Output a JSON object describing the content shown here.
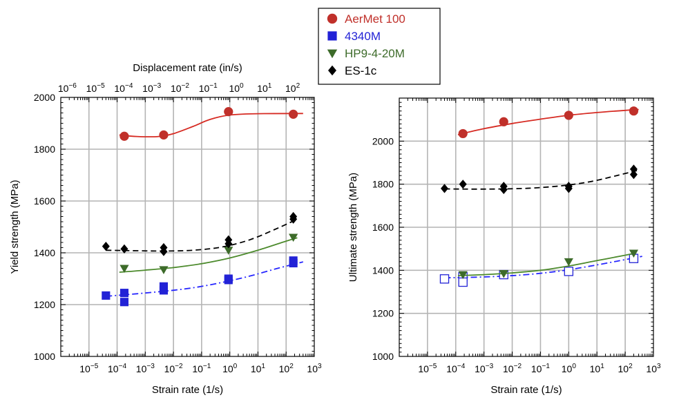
{
  "legend": [
    {
      "name": "AerMet 100",
      "color": "#c0302a",
      "marker": "circle"
    },
    {
      "name": "4340M",
      "color": "#2222d6",
      "marker": "square"
    },
    {
      "name": "HP9-4-20M",
      "color": "#3d6b2a",
      "marker": "triangle-down"
    },
    {
      "name": "ES-1c",
      "color": "#000000",
      "marker": "diamond"
    }
  ],
  "chart_data": [
    {
      "type": "scatter",
      "ylabel": "Yield strength (MPa)",
      "xlabel": "Strain rate (1/s)",
      "x2label": "Displacement rate (in/s)",
      "x_scale": "log",
      "xlim": [
        1e-06,
        1000
      ],
      "ylim": [
        1000,
        2000
      ],
      "y_ticks": [
        "1000",
        "1200",
        "1400",
        "1600",
        "1800",
        "2000"
      ],
      "x_ticks": [
        {
          "base": "10",
          "exp": "−5"
        },
        {
          "base": "10",
          "exp": "−4"
        },
        {
          "base": "10",
          "exp": "−3"
        },
        {
          "base": "10",
          "exp": "−2"
        },
        {
          "base": "10",
          "exp": "−1"
        },
        {
          "base": "10",
          "exp": "0"
        },
        {
          "base": "10",
          "exp": "1"
        },
        {
          "base": "10",
          "exp": "2"
        },
        {
          "base": "10",
          "exp": "3"
        }
      ],
      "x2_ticks": [
        {
          "base": "10",
          "exp": "−6"
        },
        {
          "base": "10",
          "exp": "−5"
        },
        {
          "base": "10",
          "exp": "−4"
        },
        {
          "base": "10",
          "exp": "−3"
        },
        {
          "base": "10",
          "exp": "−2"
        },
        {
          "base": "10",
          "exp": "−1"
        },
        {
          "base": "10",
          "exp": "0"
        },
        {
          "base": "10",
          "exp": "1"
        },
        {
          "base": "10",
          "exp": "2"
        }
      ],
      "grid": true,
      "series": [
        {
          "name": "AerMet 100",
          "points": [
            [
              0.00018,
              1850
            ],
            [
              0.0045,
              1855
            ],
            [
              0.9,
              1945
            ],
            [
              180,
              1935
            ]
          ],
          "fit": [
            [
              0.00012,
              1855
            ],
            [
              0.0005,
              1849
            ],
            [
              0.003,
              1849
            ],
            [
              0.01,
              1860
            ],
            [
              0.05,
              1888
            ],
            [
              0.2,
              1915
            ],
            [
              1,
              1932
            ],
            [
              10,
              1937
            ],
            [
              400,
              1938
            ]
          ]
        },
        {
          "name": "4340M",
          "points": [
            [
              4e-05,
              1235
            ],
            [
              0.00018,
              1245
            ],
            [
              0.00018,
              1210
            ],
            [
              0.0045,
              1270
            ],
            [
              0.0045,
              1255
            ],
            [
              0.9,
              1300
            ],
            [
              0.9,
              1295
            ],
            [
              180,
              1370
            ],
            [
              180,
              1360
            ]
          ],
          "fit": [
            [
              4e-05,
              1232
            ],
            [
              0.0005,
              1242
            ],
            [
              0.005,
              1252
            ],
            [
              0.05,
              1265
            ],
            [
              0.5,
              1285
            ],
            [
              5,
              1310
            ],
            [
              50,
              1340
            ],
            [
              400,
              1365
            ]
          ]
        },
        {
          "name": "HP9-4-20M",
          "points": [
            [
              0.00018,
              1340
            ],
            [
              0.0045,
              1335
            ],
            [
              0.9,
              1410
            ],
            [
              180,
              1460
            ]
          ],
          "fit": [
            [
              0.00012,
              1325
            ],
            [
              0.001,
              1333
            ],
            [
              0.01,
              1343
            ],
            [
              0.1,
              1358
            ],
            [
              1,
              1380
            ],
            [
              10,
              1410
            ],
            [
              100,
              1445
            ],
            [
              250,
              1458
            ]
          ]
        },
        {
          "name": "ES-1c",
          "points": [
            [
              4e-05,
              1425
            ],
            [
              0.00018,
              1415
            ],
            [
              0.0045,
              1420
            ],
            [
              0.0045,
              1405
            ],
            [
              0.9,
              1450
            ],
            [
              0.9,
              1435
            ],
            [
              180,
              1540
            ],
            [
              180,
              1530
            ]
          ],
          "fit": [
            [
              4e-05,
              1410
            ],
            [
              0.0005,
              1408
            ],
            [
              0.005,
              1407
            ],
            [
              0.05,
              1410
            ],
            [
              0.5,
              1422
            ],
            [
              5,
              1450
            ],
            [
              50,
              1495
            ],
            [
              250,
              1530
            ]
          ]
        }
      ]
    },
    {
      "type": "scatter",
      "ylabel": "Ultimate strength (MPa)",
      "xlabel": "Strain rate (1/s)",
      "x_scale": "log",
      "xlim": [
        1e-06,
        1000
      ],
      "ylim": [
        1000,
        2200
      ],
      "y_ticks": [
        "1000",
        "1200",
        "1400",
        "1600",
        "1800",
        "2000"
      ],
      "x_ticks": [
        {
          "base": "10",
          "exp": "−5"
        },
        {
          "base": "10",
          "exp": "−4"
        },
        {
          "base": "10",
          "exp": "−3"
        },
        {
          "base": "10",
          "exp": "−2"
        },
        {
          "base": "10",
          "exp": "−1"
        },
        {
          "base": "10",
          "exp": "0"
        },
        {
          "base": "10",
          "exp": "1"
        },
        {
          "base": "10",
          "exp": "2"
        },
        {
          "base": "10",
          "exp": "3"
        }
      ],
      "grid": true,
      "series": [
        {
          "name": "AerMet 100",
          "points": [
            [
              0.00018,
              2035
            ],
            [
              0.005,
              2090
            ],
            [
              1,
              2120
            ],
            [
              200,
              2140
            ]
          ],
          "fit": [
            [
              0.00012,
              2030
            ],
            [
              0.001,
              2058
            ],
            [
              0.01,
              2082
            ],
            [
              0.1,
              2102
            ],
            [
              1,
              2120
            ],
            [
              10,
              2133
            ],
            [
              100,
              2143
            ],
            [
              300,
              2147
            ]
          ]
        },
        {
          "name": "4340M",
          "points": [
            [
              4e-05,
              1360
            ],
            [
              0.00018,
              1370
            ],
            [
              0.00018,
              1345
            ],
            [
              0.005,
              1380
            ],
            [
              1,
              1395
            ],
            [
              200,
              1455
            ]
          ],
          "fit": [
            [
              4e-05,
              1365
            ],
            [
              0.0005,
              1368
            ],
            [
              0.005,
              1373
            ],
            [
              0.05,
              1382
            ],
            [
              0.5,
              1397
            ],
            [
              5,
              1418
            ],
            [
              50,
              1442
            ],
            [
              400,
              1465
            ]
          ]
        },
        {
          "name": "HP9-4-20M",
          "points": [
            [
              0.00018,
              1380
            ],
            [
              0.005,
              1385
            ],
            [
              1,
              1440
            ],
            [
              200,
              1480
            ]
          ],
          "fit": [
            [
              0.00012,
              1375
            ],
            [
              0.001,
              1380
            ],
            [
              0.01,
              1388
            ],
            [
              0.1,
              1400
            ],
            [
              1,
              1420
            ],
            [
              10,
              1445
            ],
            [
              100,
              1470
            ],
            [
              250,
              1482
            ]
          ]
        },
        {
          "name": "ES-1c",
          "points": [
            [
              4e-05,
              1780
            ],
            [
              0.00018,
              1800
            ],
            [
              0.005,
              1790
            ],
            [
              0.005,
              1775
            ],
            [
              1,
              1790
            ],
            [
              1,
              1780
            ],
            [
              200,
              1870
            ],
            [
              200,
              1845
            ]
          ],
          "fit": [
            [
              4e-05,
              1778
            ],
            [
              0.0005,
              1777
            ],
            [
              0.005,
              1778
            ],
            [
              0.05,
              1782
            ],
            [
              0.5,
              1792
            ],
            [
              5,
              1810
            ],
            [
              50,
              1840
            ],
            [
              300,
              1865
            ]
          ]
        }
      ]
    }
  ]
}
